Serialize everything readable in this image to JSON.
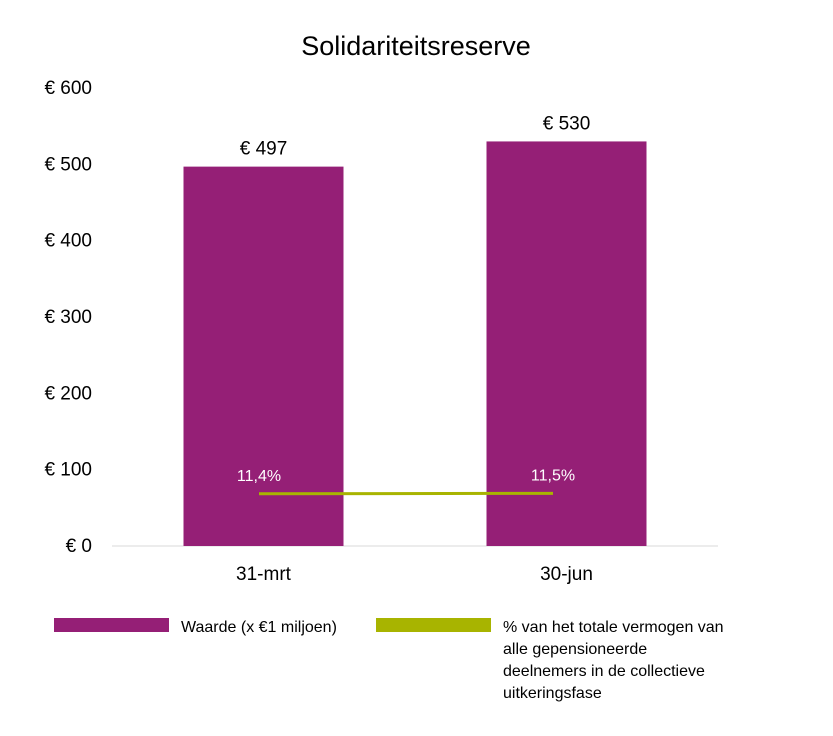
{
  "chart_data": {
    "type": "bar",
    "title": "Solidariteitsreserve",
    "categories": [
      "31-mrt",
      "30-jun"
    ],
    "ylim": [
      0,
      600
    ],
    "yticks": [
      0,
      100,
      200,
      300,
      400,
      500,
      600
    ],
    "ytick_labels": [
      "€ 0",
      "€ 100",
      "€ 200",
      "€ 300",
      "€ 400",
      "€ 500",
      "€ 600"
    ],
    "grid": false,
    "legend_position": "bottom",
    "series": [
      {
        "name": "Waarde (x €1 miljoen)",
        "type": "bar",
        "color": "#951f76",
        "values": [
          497,
          530
        ],
        "labels": [
          "€ 497",
          "€ 530"
        ]
      },
      {
        "name": "% van het totale vermogen van alle gepensioneerde deelnemers in de collectieve uitkeringsfase",
        "name_lines": [
          "% van het totale vermogen van",
          "alle gepensioneerde",
          "deelnemers in de collectieve",
          "uitkeringsfase"
        ],
        "type": "line",
        "color": "#a8b400",
        "values": [
          11.4,
          11.5
        ],
        "labels": [
          "11,4%",
          "11,5%"
        ]
      }
    ]
  }
}
